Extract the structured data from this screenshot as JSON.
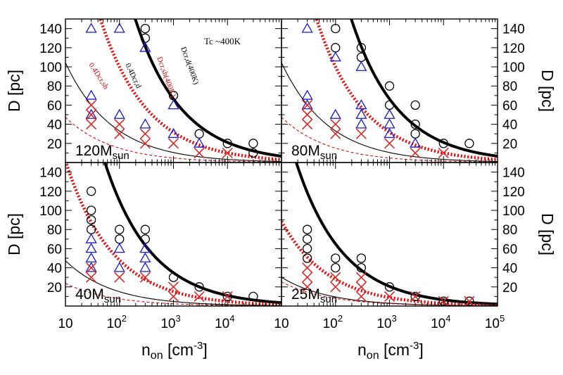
{
  "chart_data": {
    "type": "scatter",
    "x_scale": "log",
    "xlim": [
      10,
      100000
    ],
    "ylim": [
      0,
      150
    ],
    "xlabel_main": "n",
    "xlabel_sub": "on",
    "xlabel_unit_prefix": " [cm",
    "xlabel_unit_sup": "-3",
    "xlabel_unit_suffix": "]",
    "ylabel": "D [pc]",
    "x_tick_labels": [
      {
        "value": 10,
        "base": "10",
        "exp": ""
      },
      {
        "value": 100,
        "base": "10",
        "exp": "2"
      },
      {
        "value": 1000,
        "base": "10",
        "exp": "3"
      },
      {
        "value": 10000,
        "base": "10",
        "exp": "4"
      },
      {
        "value": 100000,
        "base": "10",
        "exp": "5"
      }
    ],
    "y_ticks": [
      20,
      40,
      60,
      80,
      100,
      120,
      140
    ],
    "tc_label": "Tc ~400K",
    "curve_labels": {
      "thick_black": "Dcr,d(400K)",
      "dotted_red": "Dcr,sh(400K)",
      "thin_black": "0.4Dcr,d",
      "dashed_red": "0.4Dcr,sh"
    },
    "colors": {
      "circle": "#000000",
      "triangle": "#1a1acc",
      "cross": "#d42a2a",
      "thick_black": "#000000",
      "thin_black": "#000000",
      "dotted_red": "#dd1111",
      "dashed_red": "#cc1111"
    },
    "panels": [
      {
        "name": "120Msun",
        "label_main": "120M",
        "label_sub": "sun",
        "curves": {
          "thick_black": 2100,
          "dotted_red": 1000,
          "thin_black": 330,
          "dashed_red": 150
        },
        "circles": [
          [
            300,
            140
          ],
          [
            300,
            130
          ],
          [
            1000,
            70
          ],
          [
            3000,
            30
          ],
          [
            10000,
            20
          ],
          [
            30000,
            20
          ],
          [
            30000,
            10
          ]
        ],
        "triangles": [
          [
            30,
            140
          ],
          [
            100,
            140
          ],
          [
            300,
            120
          ],
          [
            30,
            70
          ],
          [
            1000,
            60
          ],
          [
            100,
            50
          ],
          [
            30,
            50
          ],
          [
            300,
            40
          ],
          [
            1000,
            30
          ],
          [
            3000,
            20
          ]
        ],
        "crosses": [
          [
            30,
            60
          ],
          [
            30,
            50
          ],
          [
            30,
            40
          ],
          [
            100,
            40
          ],
          [
            100,
            30
          ],
          [
            300,
            30
          ],
          [
            300,
            20
          ],
          [
            1000,
            20
          ],
          [
            3000,
            10
          ],
          [
            10000,
            10
          ]
        ]
      },
      {
        "name": "80Msun",
        "label_main": "80M",
        "label_sub": "sun",
        "curves": {
          "thick_black": 2100,
          "dotted_red": 1000,
          "thin_black": 330,
          "dashed_red": 150
        },
        "circles": [
          [
            100,
            140
          ],
          [
            100,
            120
          ],
          [
            300,
            120
          ],
          [
            300,
            110
          ],
          [
            1000,
            80
          ],
          [
            1000,
            60
          ],
          [
            3000,
            60
          ],
          [
            3000,
            40
          ],
          [
            3000,
            30
          ],
          [
            10000,
            20
          ],
          [
            30000,
            20
          ]
        ],
        "triangles": [
          [
            30,
            140
          ],
          [
            100,
            110
          ],
          [
            300,
            100
          ],
          [
            30,
            70
          ],
          [
            30,
            60
          ],
          [
            300,
            60
          ],
          [
            300,
            50
          ],
          [
            1000,
            50
          ],
          [
            100,
            50
          ],
          [
            300,
            40
          ],
          [
            1000,
            40
          ],
          [
            1000,
            30
          ],
          [
            3000,
            20
          ]
        ],
        "crosses": [
          [
            30,
            60
          ],
          [
            30,
            50
          ],
          [
            30,
            40
          ],
          [
            100,
            40
          ],
          [
            100,
            30
          ],
          [
            300,
            30
          ],
          [
            1000,
            20
          ],
          [
            3000,
            10
          ],
          [
            10000,
            10
          ]
        ]
      },
      {
        "name": "40Msun",
        "label_main": "40M",
        "label_sub": "sun",
        "curves": {
          "thick_black": 1100,
          "dotted_red": 480,
          "thin_black": 150,
          "dashed_red": 75
        },
        "circles": [
          [
            30,
            120
          ],
          [
            30,
            100
          ],
          [
            30,
            90
          ],
          [
            30,
            80
          ],
          [
            100,
            80
          ],
          [
            100,
            70
          ],
          [
            300,
            80
          ],
          [
            300,
            70
          ],
          [
            1000,
            30
          ],
          [
            3000,
            20
          ],
          [
            10000,
            10
          ],
          [
            30000,
            10
          ]
        ],
        "triangles": [
          [
            30,
            70
          ],
          [
            30,
            60
          ],
          [
            30,
            50
          ],
          [
            100,
            60
          ],
          [
            300,
            60
          ],
          [
            300,
            50
          ],
          [
            300,
            40
          ],
          [
            100,
            40
          ],
          [
            30,
            40
          ]
        ],
        "crosses": [
          [
            30,
            40
          ],
          [
            30,
            30
          ],
          [
            100,
            30
          ],
          [
            300,
            30
          ],
          [
            1000,
            20
          ],
          [
            1000,
            10
          ],
          [
            3000,
            10
          ],
          [
            10000,
            10
          ]
        ]
      },
      {
        "name": "25Msun",
        "label_main": "25M",
        "label_sub": "sun",
        "curves": {
          "thick_black": 650,
          "dotted_red": 280,
          "thin_black": 95,
          "dashed_red": 80
        },
        "circles": [
          [
            30,
            80
          ],
          [
            30,
            70
          ],
          [
            30,
            60
          ],
          [
            30,
            50
          ],
          [
            100,
            50
          ],
          [
            100,
            40
          ],
          [
            300,
            50
          ],
          [
            300,
            40
          ],
          [
            1000,
            20
          ],
          [
            3000,
            10
          ],
          [
            10000,
            5
          ],
          [
            30000,
            5
          ]
        ],
        "triangles": [],
        "crosses": [
          [
            30,
            40
          ],
          [
            30,
            30
          ],
          [
            30,
            20
          ],
          [
            100,
            30
          ],
          [
            100,
            20
          ],
          [
            300,
            30
          ],
          [
            300,
            20
          ],
          [
            300,
            10
          ],
          [
            1000,
            10
          ],
          [
            3000,
            10
          ],
          [
            10000,
            5
          ],
          [
            30000,
            5
          ]
        ]
      }
    ]
  }
}
